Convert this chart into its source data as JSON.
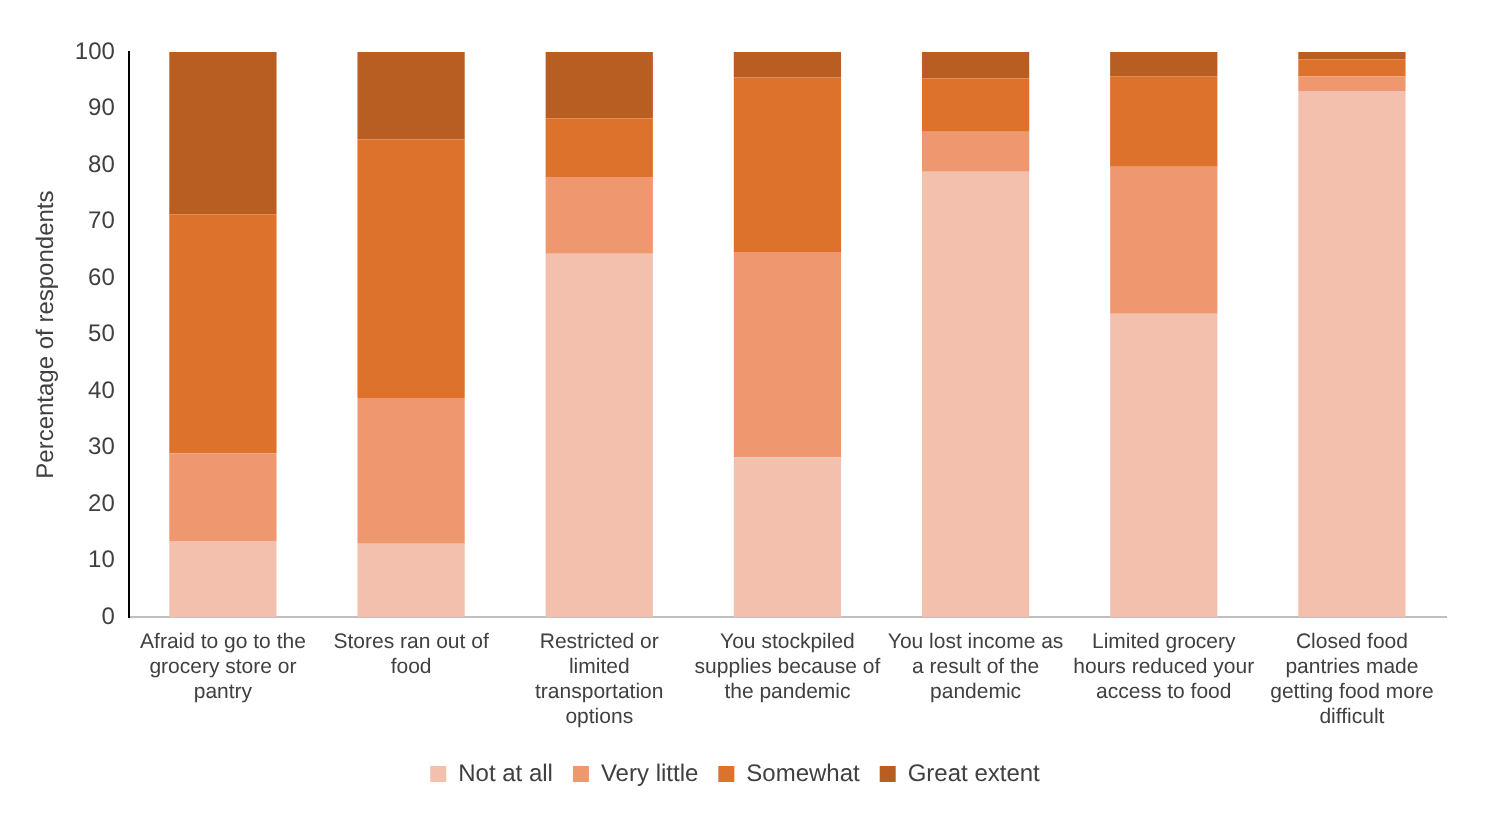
{
  "chart_data": {
    "type": "bar",
    "stacked": true,
    "ylabel": "Percentage of respondents",
    "categories": [
      "Afraid to go to the grocery store or pantry",
      "Stores ran out of food",
      "Restricted or limited transportation options",
      "You stockpiled supplies because of the pandemic",
      "You lost income as a result of the pandemic",
      "Limited grocery hours reduced your access to food",
      "Closed food pantries made getting food more difficult"
    ],
    "series": [
      {
        "name": "Not at all",
        "color": "#f4c0ae",
        "values": [
          13.5,
          13,
          64.3,
          28.3,
          78.8,
          53.7,
          93.1
        ]
      },
      {
        "name": "Very little",
        "color": "#ef9870",
        "values": [
          15.5,
          25.8,
          13.6,
          36.3,
          7.1,
          26,
          2.6
        ]
      },
      {
        "name": "Somewhat",
        "color": "#dc722c",
        "values": [
          42.3,
          45.7,
          10.4,
          30.9,
          9.4,
          16,
          3
        ]
      },
      {
        "name": "Great extent",
        "color": "#b85e22",
        "values": [
          28.7,
          15.5,
          11.7,
          4.5,
          4.7,
          4.3,
          1.3
        ]
      }
    ],
    "ylim": [
      0,
      100
    ],
    "yticks": [
      0,
      10,
      20,
      30,
      40,
      50,
      60,
      70,
      80,
      90,
      100
    ],
    "grid": false,
    "legend": "bottom"
  }
}
